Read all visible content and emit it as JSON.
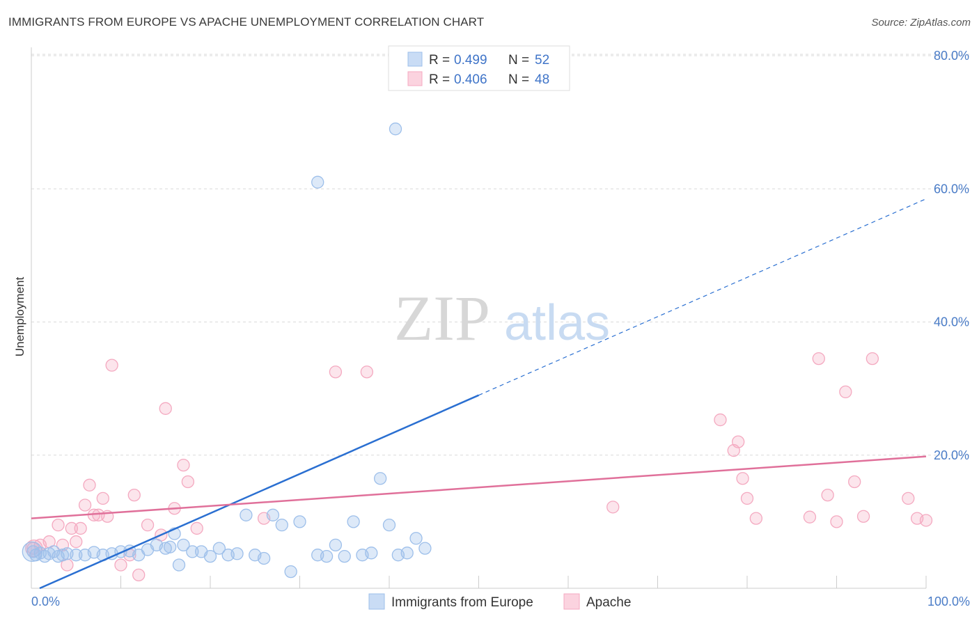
{
  "title": "IMMIGRANTS FROM EUROPE VS APACHE UNEMPLOYMENT CORRELATION CHART",
  "source": "Source: ZipAtlas.com",
  "watermark": {
    "zip": "ZIP",
    "atlas": "atlas"
  },
  "colors": {
    "europe": "#9dbfea",
    "europe_line": "#2a6fd1",
    "apache": "#f4a9c0",
    "apache_line": "#e0709a",
    "grid": "#d9d9d9",
    "tick_text": "#4a7cc7"
  },
  "legend": {
    "rows": [
      {
        "r_label": "R = ",
        "r_value": "0.499",
        "n_label": "N = ",
        "n_value": "52",
        "series": "europe"
      },
      {
        "r_label": "R = ",
        "r_value": "0.406",
        "n_label": "N = ",
        "n_value": "48",
        "series": "apache"
      }
    ]
  },
  "chart_data": {
    "type": "scatter",
    "title": "IMMIGRANTS FROM EUROPE VS APACHE UNEMPLOYMENT CORRELATION CHART",
    "xlabel": "",
    "ylabel": "Unemployment",
    "xlim": [
      0,
      100
    ],
    "ylim": [
      0,
      80
    ],
    "x_tick_labels": [
      "0.0%",
      "100.0%"
    ],
    "y_ticks": [
      20,
      40,
      60,
      80
    ],
    "y_tick_labels": [
      "20.0%",
      "40.0%",
      "60.0%",
      "80.0%"
    ],
    "grid": true,
    "legend_position": "top-center",
    "series": [
      {
        "name": "Immigrants from Europe",
        "color": "#9dbfea",
        "trend": {
          "x": [
            0,
            50
          ],
          "y": [
            0,
            29
          ],
          "dashed_to": [
            100,
            58.5
          ]
        },
        "points": [
          [
            0.2,
            5.5
          ],
          [
            0.5,
            5
          ],
          [
            1,
            5.3
          ],
          [
            1.5,
            4.8
          ],
          [
            2,
            5.2
          ],
          [
            2.5,
            5.5
          ],
          [
            3,
            4.8
          ],
          [
            3.5,
            5
          ],
          [
            4,
            5.2
          ],
          [
            5,
            5
          ],
          [
            6,
            5
          ],
          [
            7,
            5.4
          ],
          [
            8,
            5
          ],
          [
            9,
            5.2
          ],
          [
            10,
            5.5
          ],
          [
            11,
            5.6
          ],
          [
            12,
            5
          ],
          [
            13,
            5.8
          ],
          [
            14,
            6.5
          ],
          [
            15,
            6
          ],
          [
            15.5,
            6.2
          ],
          [
            16,
            8.2
          ],
          [
            16.5,
            3.5
          ],
          [
            17,
            6.5
          ],
          [
            18,
            5.5
          ],
          [
            19,
            5.5
          ],
          [
            20,
            4.8
          ],
          [
            21,
            6
          ],
          [
            22,
            5
          ],
          [
            23,
            5.2
          ],
          [
            24,
            11
          ],
          [
            25,
            5
          ],
          [
            26,
            4.5
          ],
          [
            27,
            11
          ],
          [
            28,
            9.5
          ],
          [
            29,
            2.5
          ],
          [
            30,
            10
          ],
          [
            32,
            5
          ],
          [
            33,
            4.8
          ],
          [
            34,
            6.5
          ],
          [
            35,
            4.8
          ],
          [
            36,
            10
          ],
          [
            37,
            5
          ],
          [
            38,
            5.3
          ],
          [
            39,
            16.5
          ],
          [
            40,
            9.5
          ],
          [
            41,
            5
          ],
          [
            42,
            5.3
          ],
          [
            43,
            7.5
          ],
          [
            44,
            6
          ],
          [
            32,
            61
          ],
          [
            40.7,
            69
          ]
        ]
      },
      {
        "name": "Apache",
        "color": "#f4a9c0",
        "trend": {
          "x": [
            0,
            100
          ],
          "y": [
            10.5,
            19.8
          ]
        },
        "points": [
          [
            0.2,
            6
          ],
          [
            1,
            6.5
          ],
          [
            2,
            7
          ],
          [
            3,
            9.5
          ],
          [
            3.5,
            6.5
          ],
          [
            4,
            3.5
          ],
          [
            4.5,
            9
          ],
          [
            5,
            7
          ],
          [
            5.5,
            9
          ],
          [
            6,
            12.5
          ],
          [
            6.5,
            15.5
          ],
          [
            7,
            11
          ],
          [
            7.5,
            11
          ],
          [
            8,
            13.5
          ],
          [
            8.5,
            10.8
          ],
          [
            9,
            33.5
          ],
          [
            10,
            3.5
          ],
          [
            11,
            5
          ],
          [
            11.5,
            14
          ],
          [
            12,
            2
          ],
          [
            13,
            9.5
          ],
          [
            14.5,
            8
          ],
          [
            15,
            27
          ],
          [
            16,
            12
          ],
          [
            17,
            18.5
          ],
          [
            17.5,
            16
          ],
          [
            18.5,
            9
          ],
          [
            26,
            10.5
          ],
          [
            34,
            32.5
          ],
          [
            37.5,
            32.5
          ],
          [
            65,
            12.2
          ],
          [
            77,
            25.3
          ],
          [
            78.5,
            20.7
          ],
          [
            79,
            22
          ],
          [
            79.5,
            16.5
          ],
          [
            80,
            13.5
          ],
          [
            81,
            10.5
          ],
          [
            87,
            10.7
          ],
          [
            88,
            34.5
          ],
          [
            89,
            14
          ],
          [
            90,
            10
          ],
          [
            91,
            29.5
          ],
          [
            92,
            16
          ],
          [
            93,
            10.8
          ],
          [
            94,
            34.5
          ],
          [
            98,
            13.5
          ],
          [
            99,
            10.5
          ],
          [
            100,
            10.2
          ]
        ]
      }
    ]
  },
  "bottom_legend": {
    "items": [
      {
        "label": "Immigrants from Europe",
        "series": "europe"
      },
      {
        "label": "Apache",
        "series": "apache"
      }
    ]
  }
}
